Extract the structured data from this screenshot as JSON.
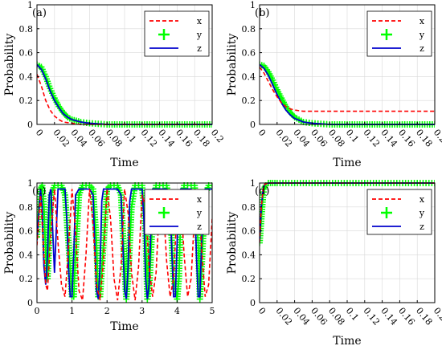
{
  "colors": {
    "x": "#ff0000",
    "y": "#00ff00",
    "z": "#0000cc",
    "grid": "#d8d8d8",
    "frame": "#000000"
  },
  "chart_data": [
    {
      "panel": "(a)",
      "type": "line",
      "xlabel": "Time",
      "ylabel": "Probability",
      "xlim": [
        0,
        0.2
      ],
      "ylim": [
        0,
        1
      ],
      "xticks": [
        "0",
        "0.02",
        "0.04",
        "0.06",
        "0.08",
        "0.1",
        "0.12",
        "0.14",
        "0.16",
        "0.18",
        "0.2"
      ],
      "xtick_values": [
        0,
        0.02,
        0.04,
        0.06,
        0.08,
        0.1,
        0.12,
        0.14,
        0.16,
        0.18,
        0.2
      ],
      "yticks": [
        "0",
        "0.2",
        "0.4",
        "0.6",
        "0.8",
        "1"
      ],
      "ytick_values": [
        0,
        0.2,
        0.4,
        0.6,
        0.8,
        1
      ],
      "tick_rotation": true,
      "grid": true,
      "legend": "top-right",
      "series": [
        {
          "name": "x",
          "style": "dashed",
          "x": [
            0,
            0.005,
            0.01,
            0.015,
            0.02,
            0.025,
            0.03,
            0.04,
            0.05,
            0.06,
            0.08,
            0.1,
            0.15,
            0.2
          ],
          "y": [
            0.42,
            0.32,
            0.2,
            0.12,
            0.07,
            0.04,
            0.02,
            0.01,
            0,
            0,
            0,
            0,
            0,
            0
          ]
        },
        {
          "name": "y",
          "style": "plus",
          "x": [
            0,
            0.005,
            0.01,
            0.015,
            0.02,
            0.025,
            0.03,
            0.035,
            0.04,
            0.045,
            0.05,
            0.06,
            0.07,
            0.08,
            0.1,
            0.12,
            0.14,
            0.16,
            0.18,
            0.2
          ],
          "y": [
            0.5,
            0.48,
            0.4,
            0.3,
            0.22,
            0.15,
            0.1,
            0.06,
            0.04,
            0.03,
            0.02,
            0.01,
            0.005,
            0,
            0,
            0,
            0,
            0,
            0,
            0
          ]
        },
        {
          "name": "z",
          "style": "solid",
          "x": [
            0,
            0.005,
            0.01,
            0.015,
            0.02,
            0.025,
            0.03,
            0.035,
            0.04,
            0.05,
            0.06,
            0.08,
            0.1,
            0.15,
            0.2
          ],
          "y": [
            0.5,
            0.46,
            0.38,
            0.28,
            0.2,
            0.14,
            0.09,
            0.06,
            0.04,
            0.02,
            0.01,
            0,
            0,
            0,
            0
          ]
        }
      ]
    },
    {
      "panel": "(b)",
      "type": "line",
      "xlabel": "Time",
      "ylabel": "Probability",
      "xlim": [
        0,
        0.2
      ],
      "ylim": [
        0,
        1
      ],
      "xticks": [
        "0",
        "0.02",
        "0.04",
        "0.06",
        "0.08",
        "0.1",
        "0.12",
        "0.14",
        "0.16",
        "0.18",
        "0.2"
      ],
      "xtick_values": [
        0,
        0.02,
        0.04,
        0.06,
        0.08,
        0.1,
        0.12,
        0.14,
        0.16,
        0.18,
        0.2
      ],
      "yticks": [
        "0",
        "0.2",
        "0.4",
        "0.6",
        "0.8",
        "1"
      ],
      "ytick_values": [
        0,
        0.2,
        0.4,
        0.6,
        0.8,
        1
      ],
      "tick_rotation": true,
      "grid": true,
      "legend": "top-right",
      "series": [
        {
          "name": "x",
          "style": "dashed",
          "x": [
            0,
            0.005,
            0.01,
            0.015,
            0.02,
            0.025,
            0.03,
            0.035,
            0.04,
            0.05,
            0.06,
            0.08,
            0.1,
            0.15,
            0.2
          ],
          "y": [
            0.48,
            0.43,
            0.36,
            0.29,
            0.23,
            0.18,
            0.15,
            0.13,
            0.12,
            0.11,
            0.11,
            0.11,
            0.11,
            0.11,
            0.11
          ]
        },
        {
          "name": "y",
          "style": "plus",
          "x": [
            0,
            0.005,
            0.01,
            0.015,
            0.02,
            0.025,
            0.03,
            0.035,
            0.04,
            0.045,
            0.05,
            0.06,
            0.07,
            0.08,
            0.1,
            0.12,
            0.14,
            0.16,
            0.18,
            0.2
          ],
          "y": [
            0.5,
            0.49,
            0.44,
            0.37,
            0.29,
            0.22,
            0.15,
            0.1,
            0.06,
            0.04,
            0.02,
            0.01,
            0.005,
            0,
            0,
            0,
            0,
            0,
            0,
            0
          ]
        },
        {
          "name": "z",
          "style": "solid",
          "x": [
            0,
            0.005,
            0.01,
            0.015,
            0.02,
            0.025,
            0.03,
            0.035,
            0.04,
            0.05,
            0.06,
            0.08,
            0.1,
            0.15,
            0.2
          ],
          "y": [
            0.5,
            0.47,
            0.41,
            0.33,
            0.25,
            0.18,
            0.12,
            0.08,
            0.05,
            0.02,
            0.01,
            0,
            0,
            0,
            0
          ]
        }
      ]
    },
    {
      "panel": "(c)",
      "type": "line",
      "xlabel": "Time",
      "ylabel": "Probability",
      "xlim": [
        0,
        5
      ],
      "ylim": [
        0,
        1
      ],
      "xticks": [
        "0",
        "1",
        "2",
        "3",
        "4",
        "5"
      ],
      "xtick_values": [
        0,
        1,
        2,
        3,
        4,
        5
      ],
      "yticks": [
        "0",
        "0.2",
        "0.4",
        "0.6",
        "0.8",
        "1"
      ],
      "ytick_values": [
        0,
        0.2,
        0.4,
        0.6,
        0.8,
        1
      ],
      "tick_rotation": false,
      "grid": true,
      "legend": "top-right",
      "series": [
        {
          "name": "x",
          "style": "dashed",
          "x": [
            0,
            0.1,
            0.2,
            0.25,
            0.3,
            0.4,
            0.5,
            0.6,
            0.7,
            0.8,
            0.9,
            1.0,
            1.1,
            1.2,
            1.3,
            1.4,
            1.5,
            1.6,
            1.7,
            1.8,
            1.9,
            2.0,
            2.1,
            2.2,
            2.3,
            2.4,
            2.5,
            2.6,
            2.7,
            2.8,
            2.9,
            3.0,
            3.1,
            3.2,
            3.3,
            3.4,
            3.5,
            3.6,
            3.7,
            3.8,
            3.9,
            4.0,
            4.1,
            4.2,
            4.3,
            4.4,
            4.5,
            4.6,
            4.7,
            4.8,
            4.9,
            5.0
          ],
          "y": [
            0.48,
            0.9,
            0.4,
            0.15,
            0.1,
            0.6,
            0.95,
            0.5,
            0.15,
            0.05,
            0.45,
            0.95,
            0.6,
            0.1,
            0.02,
            0.4,
            0.95,
            0.65,
            0.15,
            0.02,
            0.35,
            0.95,
            0.7,
            0.2,
            0.02,
            0.3,
            0.95,
            0.75,
            0.25,
            0.02,
            0.3,
            0.9,
            0.8,
            0.3,
            0.05,
            0.25,
            0.85,
            0.85,
            0.35,
            0.05,
            0.2,
            0.8,
            0.9,
            0.4,
            0.05,
            0.2,
            0.75,
            0.95,
            0.45,
            0.05,
            0.15,
            0.7
          ]
        },
        {
          "name": "y",
          "style": "plus",
          "x": [
            0,
            0.05,
            0.1,
            0.15,
            0.2,
            0.25,
            0.3,
            0.35,
            0.4,
            0.5,
            0.6,
            0.7,
            0.8,
            0.9,
            1.0,
            1.05,
            1.1,
            1.2,
            1.3,
            1.4,
            1.5,
            1.6,
            1.7,
            1.75,
            1.8,
            1.9,
            2.0,
            2.1,
            2.2,
            2.3,
            2.4,
            2.5,
            2.55,
            2.6,
            2.7,
            2.8,
            2.9,
            3.0,
            3.1,
            3.15,
            3.2,
            3.3,
            3.4,
            3.5,
            3.6,
            3.7,
            3.8,
            3.9,
            4.0,
            4.05,
            4.1,
            4.2,
            4.3,
            4.4,
            4.5,
            4.6,
            4.65,
            4.7,
            4.8,
            4.9,
            5.0
          ],
          "y": [
            0.55,
            0.8,
            0.95,
            0.98,
            0.8,
            0.4,
            0.2,
            0.5,
            0.9,
            0.98,
            0.98,
            0.98,
            0.9,
            0.5,
            0.05,
            0.05,
            0.4,
            0.9,
            0.98,
            0.98,
            0.98,
            0.95,
            0.5,
            0.05,
            0.05,
            0.5,
            0.95,
            0.98,
            0.98,
            0.98,
            0.9,
            0.3,
            0.03,
            0.2,
            0.8,
            0.98,
            0.98,
            0.98,
            0.6,
            0.03,
            0.1,
            0.7,
            0.98,
            0.98,
            0.98,
            0.98,
            0.8,
            0.2,
            0.03,
            0.2,
            0.7,
            0.98,
            0.98,
            0.98,
            0.98,
            0.5,
            0.03,
            0.3,
            0.9,
            0.98,
            0.98
          ]
        },
        {
          "name": "z",
          "style": "solid",
          "x": [
            0,
            0.1,
            0.15,
            0.2,
            0.25,
            0.3,
            0.35,
            0.4,
            0.45,
            0.5,
            0.55,
            0.6,
            0.8,
            0.85,
            0.9,
            0.95,
            1.0,
            1.05,
            1.1,
            1.2,
            1.5,
            1.6,
            1.65,
            1.7,
            1.75,
            1.8,
            1.85,
            1.9,
            2.0,
            2.3,
            2.4,
            2.45,
            2.5,
            2.55,
            2.6,
            2.65,
            2.7,
            2.8,
            3.0,
            3.05,
            3.1,
            3.15,
            3.2,
            3.25,
            3.3,
            3.4,
            3.7,
            3.8,
            3.85,
            3.9,
            3.95,
            4.0,
            4.05,
            4.1,
            4.2,
            4.4,
            4.5,
            4.55,
            4.6,
            4.65,
            4.7,
            4.75,
            4.8,
            4.9,
            5.0
          ],
          "y": [
            0.52,
            0.95,
            0.8,
            0.3,
            0.15,
            0.4,
            0.9,
            0.95,
            0.6,
            0.25,
            0.6,
            0.95,
            0.95,
            0.7,
            0.3,
            0.05,
            0.05,
            0.4,
            0.9,
            0.95,
            0.95,
            0.9,
            0.5,
            0.1,
            0.03,
            0.3,
            0.85,
            0.95,
            0.95,
            0.95,
            0.9,
            0.5,
            0.1,
            0.03,
            0.3,
            0.85,
            0.95,
            0.95,
            0.95,
            0.7,
            0.2,
            0.03,
            0.15,
            0.6,
            0.95,
            0.95,
            0.95,
            0.85,
            0.4,
            0.05,
            0.05,
            0.5,
            0.9,
            0.95,
            0.95,
            0.95,
            0.9,
            0.4,
            0.05,
            0.05,
            0.5,
            0.9,
            0.95,
            0.95,
            0.95
          ]
        }
      ]
    },
    {
      "panel": "(d)",
      "type": "line",
      "xlabel": "Time",
      "ylabel": "Probability",
      "xlim": [
        0,
        0.2
      ],
      "ylim": [
        0,
        1
      ],
      "xticks": [
        "0",
        "0.02",
        "0.04",
        "0.06",
        "0.08",
        "0.1",
        "0.12",
        "0.14",
        "0.16",
        "0.18",
        "0.2"
      ],
      "xtick_values": [
        0,
        0.02,
        0.04,
        0.06,
        0.08,
        0.1,
        0.12,
        0.14,
        0.16,
        0.18,
        0.2
      ],
      "yticks": [
        "0",
        "0.2",
        "0.4",
        "0.6",
        "0.8",
        "1"
      ],
      "ytick_values": [
        0,
        0.2,
        0.4,
        0.6,
        0.8,
        1
      ],
      "tick_rotation": true,
      "grid": true,
      "legend": "top-right",
      "series": [
        {
          "name": "x",
          "style": "dashed",
          "x": [
            0,
            0.002,
            0.004,
            0.006,
            0.01,
            0.05,
            0.1,
            0.15,
            0.2
          ],
          "y": [
            0.5,
            0.8,
            0.95,
            0.99,
            1,
            1,
            1,
            1,
            1
          ]
        },
        {
          "name": "y",
          "style": "plus",
          "x": [
            0,
            0.001,
            0.002,
            0.003,
            0.004,
            0.005,
            0.007,
            0.01,
            0.015,
            0.02,
            0.03,
            0.04,
            0.05,
            0.06,
            0.07,
            0.08,
            0.09,
            0.1,
            0.11,
            0.12,
            0.13,
            0.14,
            0.15,
            0.16,
            0.17,
            0.18,
            0.19,
            0.2
          ],
          "y": [
            0.5,
            0.6,
            0.7,
            0.8,
            0.9,
            0.95,
            0.98,
            1,
            1,
            1,
            1,
            1,
            1,
            1,
            1,
            1,
            1,
            1,
            1,
            1,
            1,
            1,
            1,
            1,
            1,
            1,
            1,
            1
          ]
        },
        {
          "name": "z",
          "style": "solid",
          "x": [
            0,
            0.002,
            0.004,
            0.006,
            0.01,
            0.05,
            0.1,
            0.15,
            0.2
          ],
          "y": [
            0.5,
            0.8,
            0.95,
            0.99,
            1,
            1,
            1,
            1,
            1
          ]
        }
      ]
    }
  ]
}
